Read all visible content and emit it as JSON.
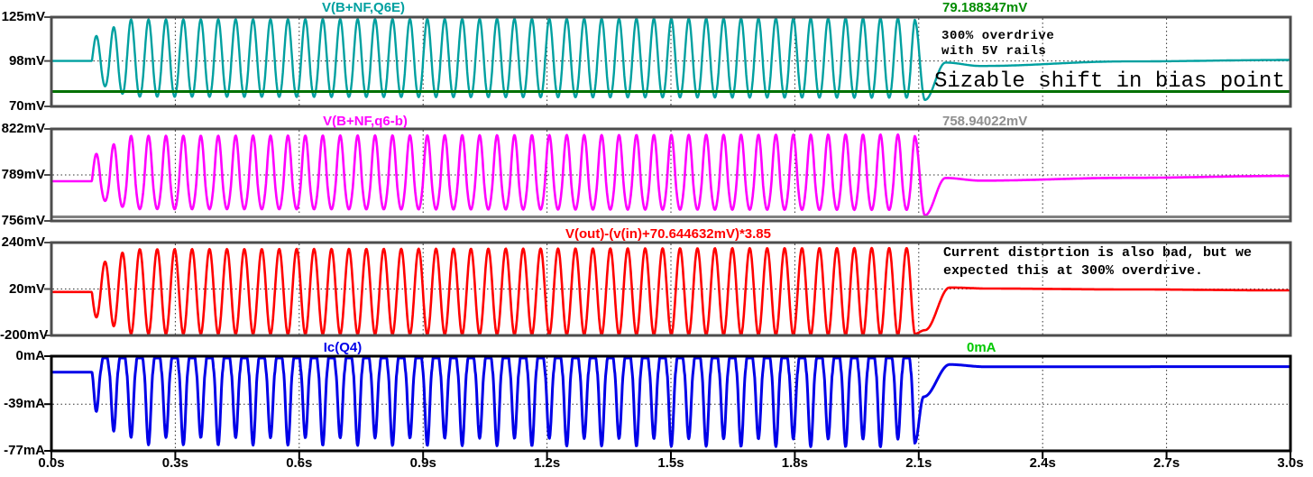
{
  "chart_data": {
    "type": "line",
    "description": "Transient simulation waveform viewer, 4 stacked panes, 300% overdrive test",
    "xlim": [
      0,
      3
    ],
    "xunit": "s",
    "xticks": [
      "0.0s",
      "0.3s",
      "0.6s",
      "0.9s",
      "1.2s",
      "1.5s",
      "1.8s",
      "2.1s",
      "2.4s",
      "2.7s",
      "3.0s"
    ],
    "grid": true,
    "panes": [
      {
        "name": "V(B+NF,Q6E)",
        "color": "#00A0A0",
        "ylim": [
          70,
          125
        ],
        "yunit": "mV",
        "yticks": [
          {
            "label": "125mV",
            "value": 125
          },
          {
            "label": "98mV",
            "value": 98
          },
          {
            "label": "70mV",
            "value": 70
          }
        ],
        "grid_value": 98,
        "ref_line": {
          "value": 79.188347,
          "color": "#007000",
          "label": "79.188347mV",
          "label_color": "#008C00"
        },
        "waveform": {
          "baseline": 98,
          "osc_start": 0.098,
          "osc_end": 2.09,
          "freq_hz": 23.7,
          "peak": 123.5,
          "trough": 76,
          "invert": false,
          "top_exp": 1.1,
          "bot_exp": 0.85,
          "settle": [
            [
              2.115,
              74
            ],
            [
              2.165,
              97.0
            ],
            [
              2.25,
              94.9
            ],
            [
              2.6,
              97.7
            ],
            [
              3.0,
              98.6
            ]
          ]
        },
        "annotations": [
          {
            "text": "300% overdrive"
          },
          {
            "text": "with 5V rails"
          },
          {
            "text": "Sizable shift in bias point"
          }
        ]
      },
      {
        "name": "V(B+NF,q6-b)",
        "color": "#FF00FF",
        "ylim": [
          756,
          822
        ],
        "yunit": "mV",
        "yticks": [
          {
            "label": "822mV",
            "value": 822
          },
          {
            "label": "789mV",
            "value": 789
          },
          {
            "label": "756mV",
            "value": 756
          }
        ],
        "grid_value": 789,
        "ref_line": {
          "value": 758.94022,
          "color": "#808080",
          "label": "758.94022mV",
          "label_color": "#8E8E8E"
        },
        "waveform": {
          "baseline": 784.5,
          "osc_start": 0.098,
          "osc_end": 2.09,
          "freq_hz": 23.7,
          "peak": 817,
          "trough": 764.5,
          "invert": false,
          "top_exp": 1.05,
          "bot_exp": 0.9,
          "settle": [
            [
              2.115,
              760
            ],
            [
              2.165,
              786.8
            ],
            [
              2.25,
              784.9
            ],
            [
              2.6,
              786.9
            ],
            [
              3.0,
              788.3
            ]
          ]
        },
        "annotations": []
      },
      {
        "name": "V(out)-(v(in)+70.644632mV)*3.85",
        "color": "#FF0000",
        "ylim": [
          -200,
          240
        ],
        "yunit": "mV",
        "yticks": [
          {
            "label": "240mV",
            "value": 240
          },
          {
            "label": "20mV",
            "value": 20
          },
          {
            "label": "-200mV",
            "value": -200
          }
        ],
        "grid_value": 20,
        "ref_line": null,
        "waveform": {
          "baseline": 6,
          "osc_start": 0.098,
          "osc_end": 2.09,
          "freq_hz": 23.7,
          "peak": 208,
          "trough": -193,
          "invert": true,
          "top_exp": 1.0,
          "bot_exp": 1.0,
          "settle": [
            [
              2.115,
              -175
            ],
            [
              2.175,
              27
            ],
            [
              2.27,
              22
            ],
            [
              2.6,
              18
            ],
            [
              3.0,
              13.5
            ]
          ]
        },
        "annotations": [
          {
            "text": "Current distortion is also bad, but we"
          },
          {
            "text": "expected this at 300% overdrive."
          }
        ]
      },
      {
        "name": "Ic(Q4)",
        "color": "#0000E8",
        "ylim": [
          -77,
          0
        ],
        "yunit": "mA",
        "yticks": [
          {
            "label": "0mA",
            "value": 0
          },
          {
            "label": "-39mA",
            "value": -39
          },
          {
            "label": "-77mA",
            "value": -77
          }
        ],
        "grid_value": -39,
        "ref_line": {
          "value": 0,
          "color": "#00DC00",
          "label": "0mA",
          "label_color": "#00C800"
        },
        "waveform": {
          "baseline": -13,
          "osc_start": 0.098,
          "osc_end": 2.09,
          "freq_hz": 23.7,
          "peak": 12,
          "clip_top": -1.5,
          "trough": -69,
          "invert": true,
          "top_exp": 1.0,
          "bot_exp": 1.6,
          "alt_depth": 3,
          "settle": [
            [
              2.112,
              -33
            ],
            [
              2.175,
              -6.8
            ],
            [
              2.26,
              -8.6
            ],
            [
              3.0,
              -8.5
            ]
          ]
        },
        "annotations": []
      }
    ]
  }
}
